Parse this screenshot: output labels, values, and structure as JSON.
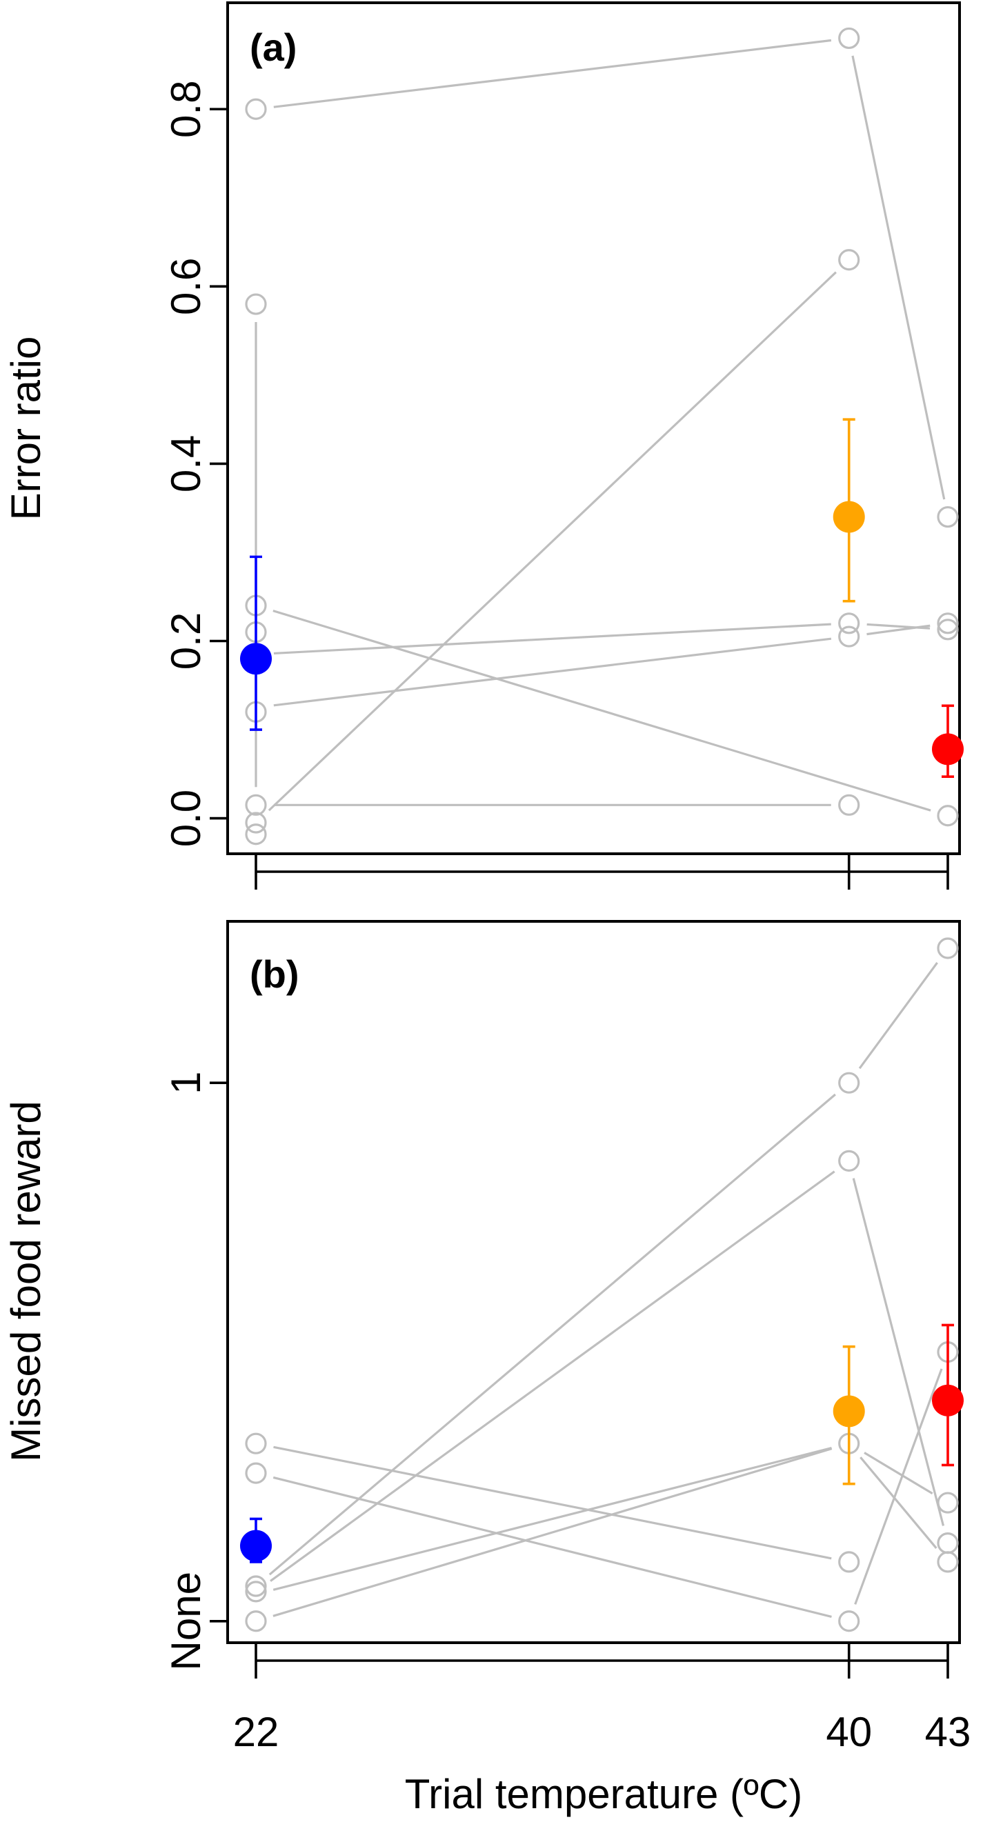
{
  "chart_data": [
    {
      "panel_label": "(a)",
      "type": "scatter",
      "ylabel": "Error ratio",
      "ylim": [
        -0.04,
        0.92
      ],
      "yticks": [
        {
          "value": 0.0,
          "label": "0.0"
        },
        {
          "value": 0.2,
          "label": "0.2"
        },
        {
          "value": 0.4,
          "label": "0.4"
        },
        {
          "value": 0.6,
          "label": "0.6"
        },
        {
          "value": 0.8,
          "label": "0.8"
        }
      ],
      "individual_points": [
        {
          "x": 22,
          "y": 0.8
        },
        {
          "x": 22,
          "y": 0.58
        },
        {
          "x": 22,
          "y": 0.24
        },
        {
          "x": 22,
          "y": 0.21
        },
        {
          "x": 22,
          "y": 0.12
        },
        {
          "x": 22,
          "y": 0.015
        },
        {
          "x": 22,
          "y": -0.005
        },
        {
          "x": 22,
          "y": -0.018
        },
        {
          "x": 40,
          "y": 0.88
        },
        {
          "x": 40,
          "y": 0.63
        },
        {
          "x": 40,
          "y": 0.22
        },
        {
          "x": 40,
          "y": 0.205
        },
        {
          "x": 40,
          "y": 0.015
        },
        {
          "x": 43,
          "y": 0.34
        },
        {
          "x": 43,
          "y": 0.22
        },
        {
          "x": 43,
          "y": 0.213
        },
        {
          "x": 43,
          "y": 0.003
        }
      ],
      "individual_lines": [
        {
          "x": [
            22,
            40
          ],
          "y": [
            0.8,
            0.88
          ]
        },
        {
          "x": [
            40,
            43
          ],
          "y": [
            0.88,
            0.34
          ]
        },
        {
          "x": [
            22,
            22
          ],
          "y": [
            0.58,
            0.015
          ]
        },
        {
          "x": [
            22,
            40
          ],
          "y": [
            -0.005,
            0.63
          ]
        },
        {
          "x": [
            22,
            43
          ],
          "y": [
            0.24,
            0.003
          ]
        },
        {
          "x": [
            22,
            40
          ],
          "y": [
            0.185,
            0.22
          ]
        },
        {
          "x": [
            40,
            43
          ],
          "y": [
            0.22,
            0.213
          ]
        },
        {
          "x": [
            22,
            40
          ],
          "y": [
            0.125,
            0.205
          ]
        },
        {
          "x": [
            40,
            43
          ],
          "y": [
            0.205,
            0.22
          ]
        },
        {
          "x": [
            22,
            40
          ],
          "y": [
            0.015,
            0.015
          ]
        }
      ],
      "means": [
        {
          "x": 22,
          "mean": 0.18,
          "lower": 0.1,
          "upper": 0.295,
          "color": "#0000FF"
        },
        {
          "x": 40,
          "mean": 0.34,
          "lower": 0.245,
          "upper": 0.45,
          "color": "#FFA500"
        },
        {
          "x": 43,
          "mean": 0.078,
          "lower": 0.047,
          "upper": 0.127,
          "color": "#FF0000"
        }
      ]
    },
    {
      "panel_label": "(b)",
      "type": "scatter",
      "ylabel": "Missed food reward",
      "ylim": [
        -0.04,
        1.3
      ],
      "yticks": [
        {
          "value": 0,
          "label": "None"
        },
        {
          "value": 1,
          "label": "1"
        }
      ],
      "individual_points": [
        {
          "x": 22,
          "y": 0.33
        },
        {
          "x": 22,
          "y": 0.275
        },
        {
          "x": 22,
          "y": 0.065
        },
        {
          "x": 22,
          "y": 0.055
        },
        {
          "x": 22,
          "y": 0.0
        },
        {
          "x": 40,
          "y": 1.0
        },
        {
          "x": 40,
          "y": 0.855
        },
        {
          "x": 40,
          "y": 0.33
        },
        {
          "x": 40,
          "y": 0.11
        },
        {
          "x": 40,
          "y": 0.0
        },
        {
          "x": 43,
          "y": 1.25
        },
        {
          "x": 43,
          "y": 0.5
        },
        {
          "x": 43,
          "y": 0.22
        },
        {
          "x": 43,
          "y": 0.145
        },
        {
          "x": 43,
          "y": 0.11
        }
      ],
      "individual_lines": [
        {
          "x": [
            22,
            40
          ],
          "y": [
            0.33,
            0.11
          ]
        },
        {
          "x": [
            22,
            40
          ],
          "y": [
            0.275,
            0.0
          ]
        },
        {
          "x": [
            22,
            40
          ],
          "y": [
            0.065,
            1.0
          ]
        },
        {
          "x": [
            40,
            43
          ],
          "y": [
            1.0,
            1.25
          ]
        },
        {
          "x": [
            22,
            40
          ],
          "y": [
            0.055,
            0.855
          ]
        },
        {
          "x": [
            40,
            43
          ],
          "y": [
            0.855,
            0.145
          ]
        },
        {
          "x": [
            22,
            40
          ],
          "y": [
            0.05,
            0.33
          ]
        },
        {
          "x": [
            40,
            43
          ],
          "y": [
            0.33,
            0.22
          ]
        },
        {
          "x": [
            22,
            40
          ],
          "y": [
            0.0,
            0.33
          ]
        },
        {
          "x": [
            40,
            43
          ],
          "y": [
            0.33,
            0.11
          ]
        },
        {
          "x": [
            40,
            43
          ],
          "y": [
            0.0,
            0.5
          ]
        }
      ],
      "means": [
        {
          "x": 22,
          "mean": 0.14,
          "lower": 0.11,
          "upper": 0.19,
          "color": "#0000FF"
        },
        {
          "x": 40,
          "mean": 0.39,
          "lower": 0.255,
          "upper": 0.51,
          "color": "#FFA500"
        },
        {
          "x": 43,
          "mean": 0.41,
          "lower": 0.29,
          "upper": 0.55,
          "color": "#FF0000"
        }
      ]
    }
  ],
  "x_axis": {
    "title": "Trial temperature (ºC)",
    "ticks": [
      {
        "value": 22,
        "label": "22"
      },
      {
        "value": 40,
        "label": "40"
      },
      {
        "value": 43,
        "label": "43"
      }
    ]
  },
  "colors": {
    "individual": "#BEBEBE",
    "t22": "#0000FF",
    "t40": "#FFA500",
    "t43": "#FF0000"
  }
}
